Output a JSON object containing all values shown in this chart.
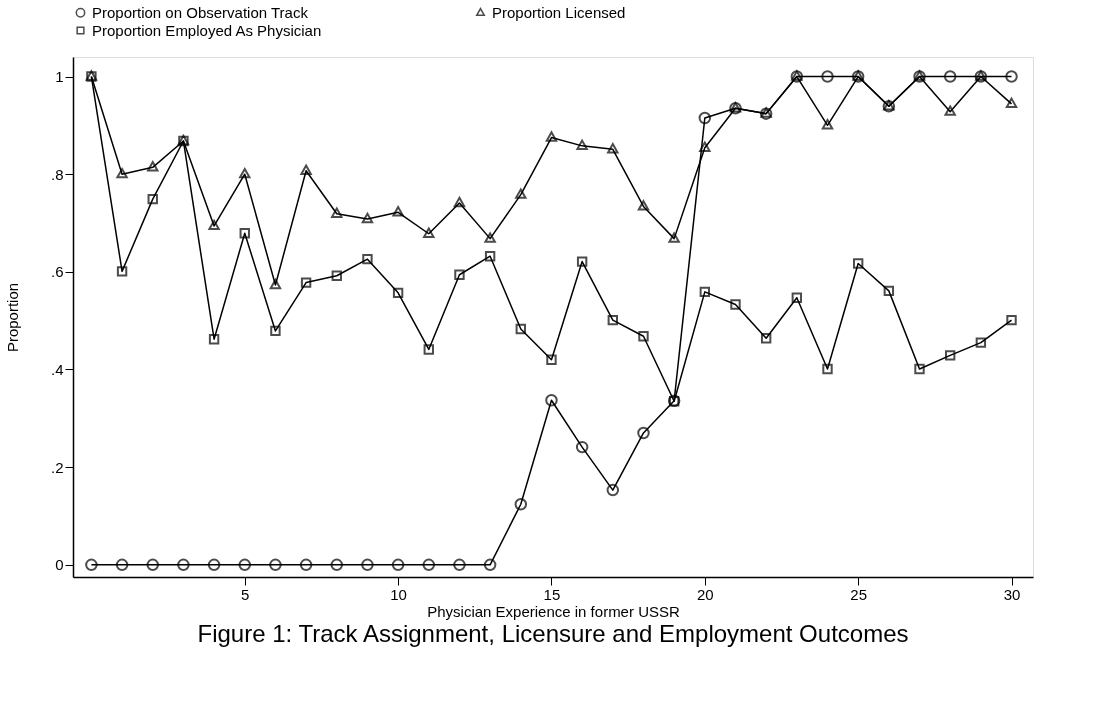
{
  "chart_data": {
    "type": "line",
    "title": "Figure 1: Track Assignment, Licensure and Employment Outcomes",
    "xlabel": "Physician Experience in former USSR",
    "ylabel": "Proportion",
    "x": [
      0,
      1,
      2,
      3,
      4,
      5,
      6,
      7,
      8,
      9,
      10,
      11,
      12,
      13,
      14,
      15,
      16,
      17,
      18,
      19,
      20,
      21,
      22,
      23,
      24,
      25,
      26,
      27,
      28,
      29,
      30
    ],
    "series": [
      {
        "name": "Proportion on Observation Track",
        "color": "#000000",
        "marker": "circle",
        "values": [
          0,
          0,
          0,
          0,
          0,
          0,
          0,
          0,
          0,
          0,
          0,
          0,
          0,
          0,
          0.124,
          0.337,
          0.241,
          0.153,
          0.27,
          0.336,
          0.915,
          0.935,
          0.924,
          1,
          1,
          1,
          0.939,
          1,
          1,
          1,
          1
        ]
      },
      {
        "name": "Proportion Licensed",
        "color": "#000000",
        "marker": "triangle",
        "values": [
          1,
          0.8,
          0.814,
          0.868,
          0.694,
          0.8,
          0.573,
          0.807,
          0.719,
          0.708,
          0.722,
          0.678,
          0.741,
          0.668,
          0.758,
          0.875,
          0.858,
          0.851,
          0.734,
          0.668,
          0.854,
          0.935,
          0.924,
          1,
          0.9,
          1,
          0.939,
          1,
          0.928,
          1,
          0.944
        ]
      },
      {
        "name": "Proportion Employed As Physician",
        "color": "#000000",
        "marker": "square",
        "values": [
          1,
          0.601,
          0.749,
          0.868,
          0.462,
          0.679,
          0.479,
          0.578,
          0.592,
          0.626,
          0.557,
          0.441,
          0.594,
          0.632,
          0.483,
          0.42,
          0.621,
          0.501,
          0.468,
          0.335,
          0.559,
          0.533,
          0.464,
          0.547,
          0.401,
          0.617,
          0.561,
          0.401,
          0.429,
          0.455,
          0.501
        ]
      }
    ],
    "xlim": [
      -0.6,
      30.7
    ],
    "xticks": [
      5,
      10,
      15,
      20,
      25,
      30
    ],
    "ylim": [
      -0.025,
      1.04
    ],
    "yticks": [
      0,
      {
        "value": 0.2,
        "label": ".2"
      },
      {
        "value": 0.4,
        "label": ".4"
      },
      {
        "value": 0.6,
        "label": ".6"
      },
      {
        "value": 0.8,
        "label": ".8"
      },
      1
    ],
    "grid": false,
    "legend": "top",
    "line_style": "solid"
  }
}
